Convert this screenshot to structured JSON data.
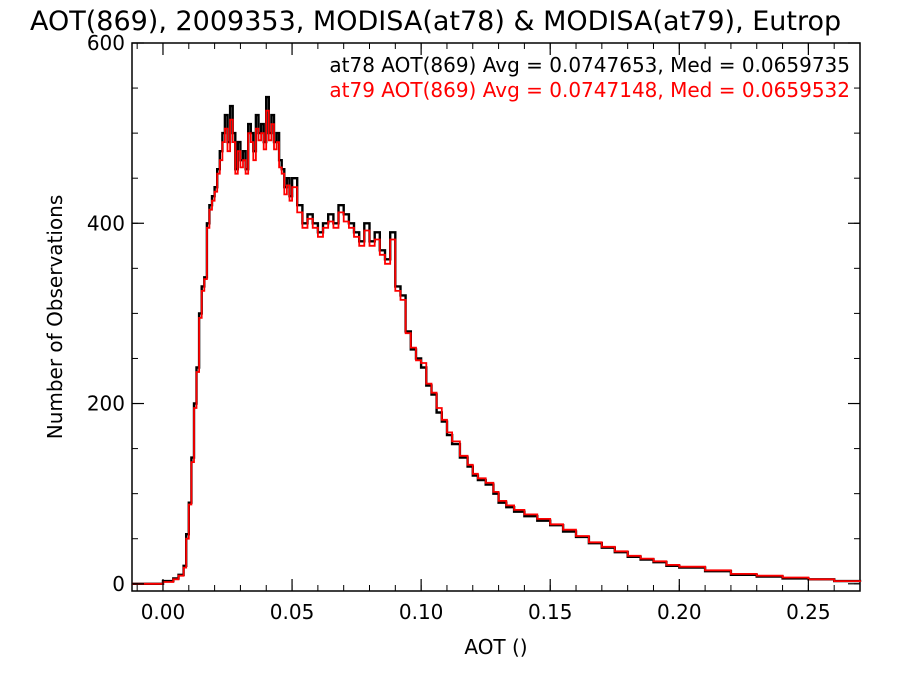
{
  "chart_data": {
    "type": "line",
    "title": "AOT(869), 2009353, MODISA(at78) & MODISA(at79), Eutrop",
    "xlabel": "AOT ()",
    "ylabel": "Number of Observations",
    "xlim": [
      -0.012,
      0.27
    ],
    "ylim": [
      -8,
      600
    ],
    "x_ticks": [
      0.0,
      0.05,
      0.1,
      0.15,
      0.2,
      0.25
    ],
    "x_tick_labels": [
      "0.00",
      "0.05",
      "0.10",
      "0.15",
      "0.20",
      "0.25"
    ],
    "y_ticks": [
      0,
      200,
      400,
      600
    ],
    "y_tick_labels": [
      "0",
      "200",
      "400",
      "600"
    ],
    "grid": false,
    "legend": [
      {
        "text": "at78 AOT(869) Avg = 0.0747653, Med = 0.0659735",
        "color": "#000000"
      },
      {
        "text": "at79 AOT(869) Avg = 0.0747148, Med = 0.0659532",
        "color": "#ff0000"
      }
    ],
    "series": [
      {
        "color": "#000000",
        "x": [
          -0.012,
          0.0,
          0.004,
          0.006,
          0.008,
          0.009,
          0.01,
          0.011,
          0.012,
          0.013,
          0.014,
          0.015,
          0.016,
          0.017,
          0.018,
          0.019,
          0.02,
          0.021,
          0.022,
          0.023,
          0.024,
          0.025,
          0.026,
          0.027,
          0.028,
          0.029,
          0.03,
          0.031,
          0.032,
          0.033,
          0.034,
          0.035,
          0.036,
          0.037,
          0.038,
          0.039,
          0.04,
          0.041,
          0.042,
          0.043,
          0.044,
          0.045,
          0.046,
          0.047,
          0.048,
          0.049,
          0.05,
          0.052,
          0.054,
          0.056,
          0.058,
          0.06,
          0.062,
          0.064,
          0.066,
          0.068,
          0.07,
          0.072,
          0.074,
          0.076,
          0.078,
          0.08,
          0.082,
          0.084,
          0.086,
          0.088,
          0.09,
          0.092,
          0.094,
          0.096,
          0.098,
          0.1,
          0.102,
          0.104,
          0.106,
          0.108,
          0.11,
          0.112,
          0.115,
          0.118,
          0.12,
          0.122,
          0.125,
          0.128,
          0.13,
          0.133,
          0.136,
          0.14,
          0.145,
          0.15,
          0.155,
          0.16,
          0.165,
          0.17,
          0.175,
          0.18,
          0.185,
          0.19,
          0.195,
          0.2,
          0.21,
          0.22,
          0.23,
          0.24,
          0.25,
          0.26,
          0.27
        ],
        "values": [
          0,
          3,
          6,
          10,
          20,
          55,
          90,
          140,
          200,
          240,
          300,
          330,
          340,
          400,
          420,
          430,
          440,
          460,
          480,
          500,
          520,
          490,
          530,
          500,
          460,
          490,
          470,
          480,
          460,
          510,
          500,
          480,
          520,
          500,
          510,
          490,
          540,
          500,
          520,
          490,
          500,
          470,
          460,
          440,
          450,
          430,
          450,
          420,
          400,
          410,
          400,
          390,
          400,
          410,
          400,
          420,
          410,
          400,
          390,
          380,
          400,
          380,
          390,
          370,
          360,
          390,
          330,
          320,
          280,
          260,
          250,
          240,
          220,
          210,
          190,
          180,
          165,
          155,
          140,
          130,
          120,
          115,
          110,
          100,
          90,
          85,
          80,
          75,
          70,
          65,
          58,
          52,
          45,
          40,
          35,
          30,
          27,
          24,
          20,
          18,
          14,
          10,
          8,
          6,
          5,
          3,
          2
        ]
      },
      {
        "color": "#ff0000",
        "x": [
          -0.012,
          0.0,
          0.004,
          0.006,
          0.008,
          0.009,
          0.01,
          0.011,
          0.012,
          0.013,
          0.014,
          0.015,
          0.016,
          0.017,
          0.018,
          0.019,
          0.02,
          0.021,
          0.022,
          0.023,
          0.024,
          0.025,
          0.026,
          0.027,
          0.028,
          0.029,
          0.03,
          0.031,
          0.032,
          0.033,
          0.034,
          0.035,
          0.036,
          0.037,
          0.038,
          0.039,
          0.04,
          0.041,
          0.042,
          0.043,
          0.044,
          0.045,
          0.046,
          0.047,
          0.048,
          0.049,
          0.05,
          0.052,
          0.054,
          0.056,
          0.058,
          0.06,
          0.062,
          0.064,
          0.066,
          0.068,
          0.07,
          0.072,
          0.074,
          0.076,
          0.078,
          0.08,
          0.082,
          0.084,
          0.086,
          0.088,
          0.09,
          0.092,
          0.094,
          0.096,
          0.098,
          0.1,
          0.102,
          0.104,
          0.106,
          0.108,
          0.11,
          0.112,
          0.115,
          0.118,
          0.12,
          0.122,
          0.125,
          0.128,
          0.13,
          0.133,
          0.136,
          0.14,
          0.145,
          0.15,
          0.155,
          0.16,
          0.165,
          0.17,
          0.175,
          0.18,
          0.185,
          0.19,
          0.195,
          0.2,
          0.21,
          0.22,
          0.23,
          0.24,
          0.25,
          0.26,
          0.27
        ],
        "values": [
          0,
          2,
          5,
          9,
          18,
          50,
          88,
          135,
          195,
          235,
          295,
          325,
          338,
          395,
          415,
          425,
          435,
          455,
          470,
          490,
          505,
          480,
          515,
          490,
          455,
          480,
          462,
          470,
          455,
          500,
          490,
          470,
          505,
          492,
          500,
          482,
          525,
          492,
          510,
          482,
          490,
          462,
          455,
          432,
          442,
          425,
          440,
          412,
          395,
          405,
          395,
          385,
          395,
          402,
          395,
          412,
          402,
          395,
          385,
          375,
          392,
          375,
          382,
          365,
          355,
          382,
          325,
          315,
          278,
          262,
          248,
          245,
          222,
          212,
          195,
          182,
          168,
          158,
          142,
          132,
          122,
          117,
          112,
          102,
          92,
          87,
          82,
          77,
          72,
          66,
          60,
          53,
          46,
          41,
          36,
          31,
          28,
          25,
          21,
          19,
          15,
          11,
          9,
          7,
          5,
          3,
          2
        ]
      }
    ]
  }
}
